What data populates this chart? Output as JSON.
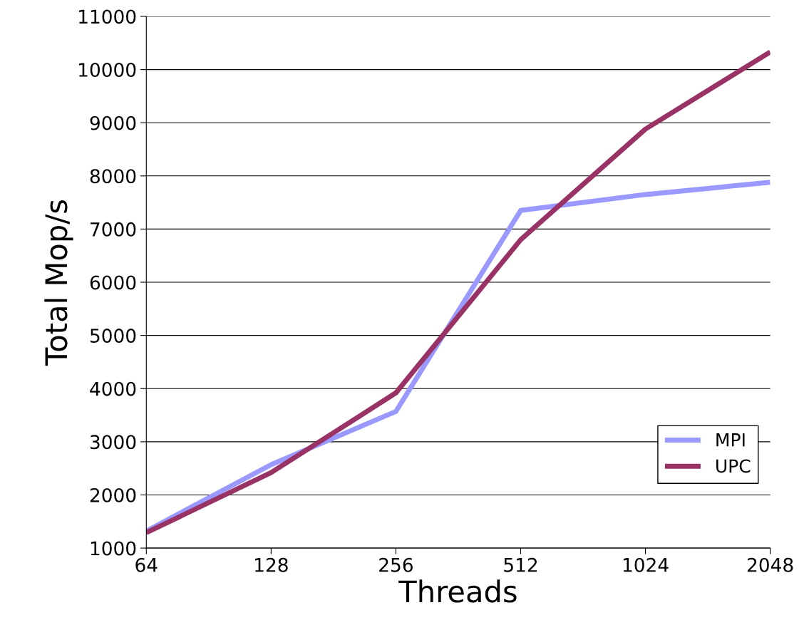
{
  "chart_data": {
    "type": "line",
    "xlabel": "Threads",
    "ylabel": "Total Mop/s",
    "categories": [
      "64",
      "128",
      "256",
      "512",
      "1024",
      "2048"
    ],
    "series": [
      {
        "name": "MPI",
        "color": "#9999ff",
        "values": [
          1320,
          2570,
          3570,
          7350,
          7650,
          7880
        ]
      },
      {
        "name": "UPC",
        "color": "#993366",
        "values": [
          1290,
          2420,
          3920,
          6800,
          8880,
          10330
        ]
      }
    ],
    "ylim": [
      1000,
      11000
    ],
    "yticks": [
      1000,
      2000,
      3000,
      4000,
      5000,
      6000,
      7000,
      8000,
      9000,
      10000,
      11000
    ],
    "grid": "y",
    "legend": "bottom right",
    "marker": "none",
    "line_style": "solid"
  }
}
